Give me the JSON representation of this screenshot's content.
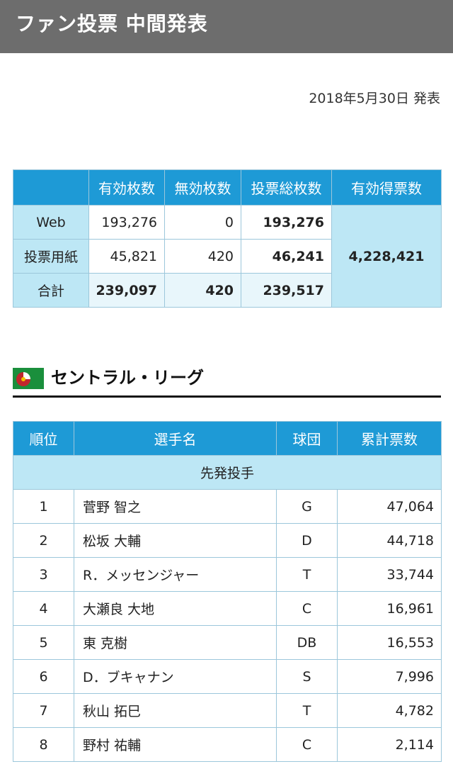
{
  "header": {
    "title": "ファン投票 中間発表"
  },
  "date": "2018年5月30日 発表",
  "tally": {
    "headers": [
      "有効枚数",
      "無効枚数",
      "投票総枚数",
      "有効得票数"
    ],
    "rows": [
      {
        "label": "Web",
        "valid": "193,276",
        "invalid": "0",
        "total": "193,276"
      },
      {
        "label": "投票用紙",
        "valid": "45,821",
        "invalid": "420",
        "total": "46,241"
      },
      {
        "label": "合計",
        "valid": "239,097",
        "invalid": "420",
        "total": "239,517"
      }
    ],
    "valid_votes": "4,228,421"
  },
  "league": {
    "title": "セントラル・リーグ",
    "logo_icon": "central-league-logo-icon",
    "logo_colors": [
      "#c0272d",
      "#1a8f3c",
      "#f2c200"
    ]
  },
  "ranking": {
    "headers": [
      "順位",
      "選手名",
      "球団",
      "累計票数"
    ],
    "category": "先発投手",
    "rows": [
      {
        "rank": "1",
        "name": "菅野 智之",
        "team": "G",
        "votes": "47,064"
      },
      {
        "rank": "2",
        "name": "松坂 大輔",
        "team": "D",
        "votes": "44,718"
      },
      {
        "rank": "3",
        "name": "R．メッセンジャー",
        "team": "T",
        "votes": "33,744"
      },
      {
        "rank": "4",
        "name": "大瀬良 大地",
        "team": "C",
        "votes": "16,961"
      },
      {
        "rank": "5",
        "name": "東 克樹",
        "team": "DB",
        "votes": "16,553"
      },
      {
        "rank": "6",
        "name": "D．ブキャナン",
        "team": "S",
        "votes": "7,996"
      },
      {
        "rank": "7",
        "name": "秋山 拓巳",
        "team": "T",
        "votes": "4,782"
      },
      {
        "rank": "8",
        "name": "野村 祐輔",
        "team": "C",
        "votes": "2,114"
      }
    ]
  }
}
